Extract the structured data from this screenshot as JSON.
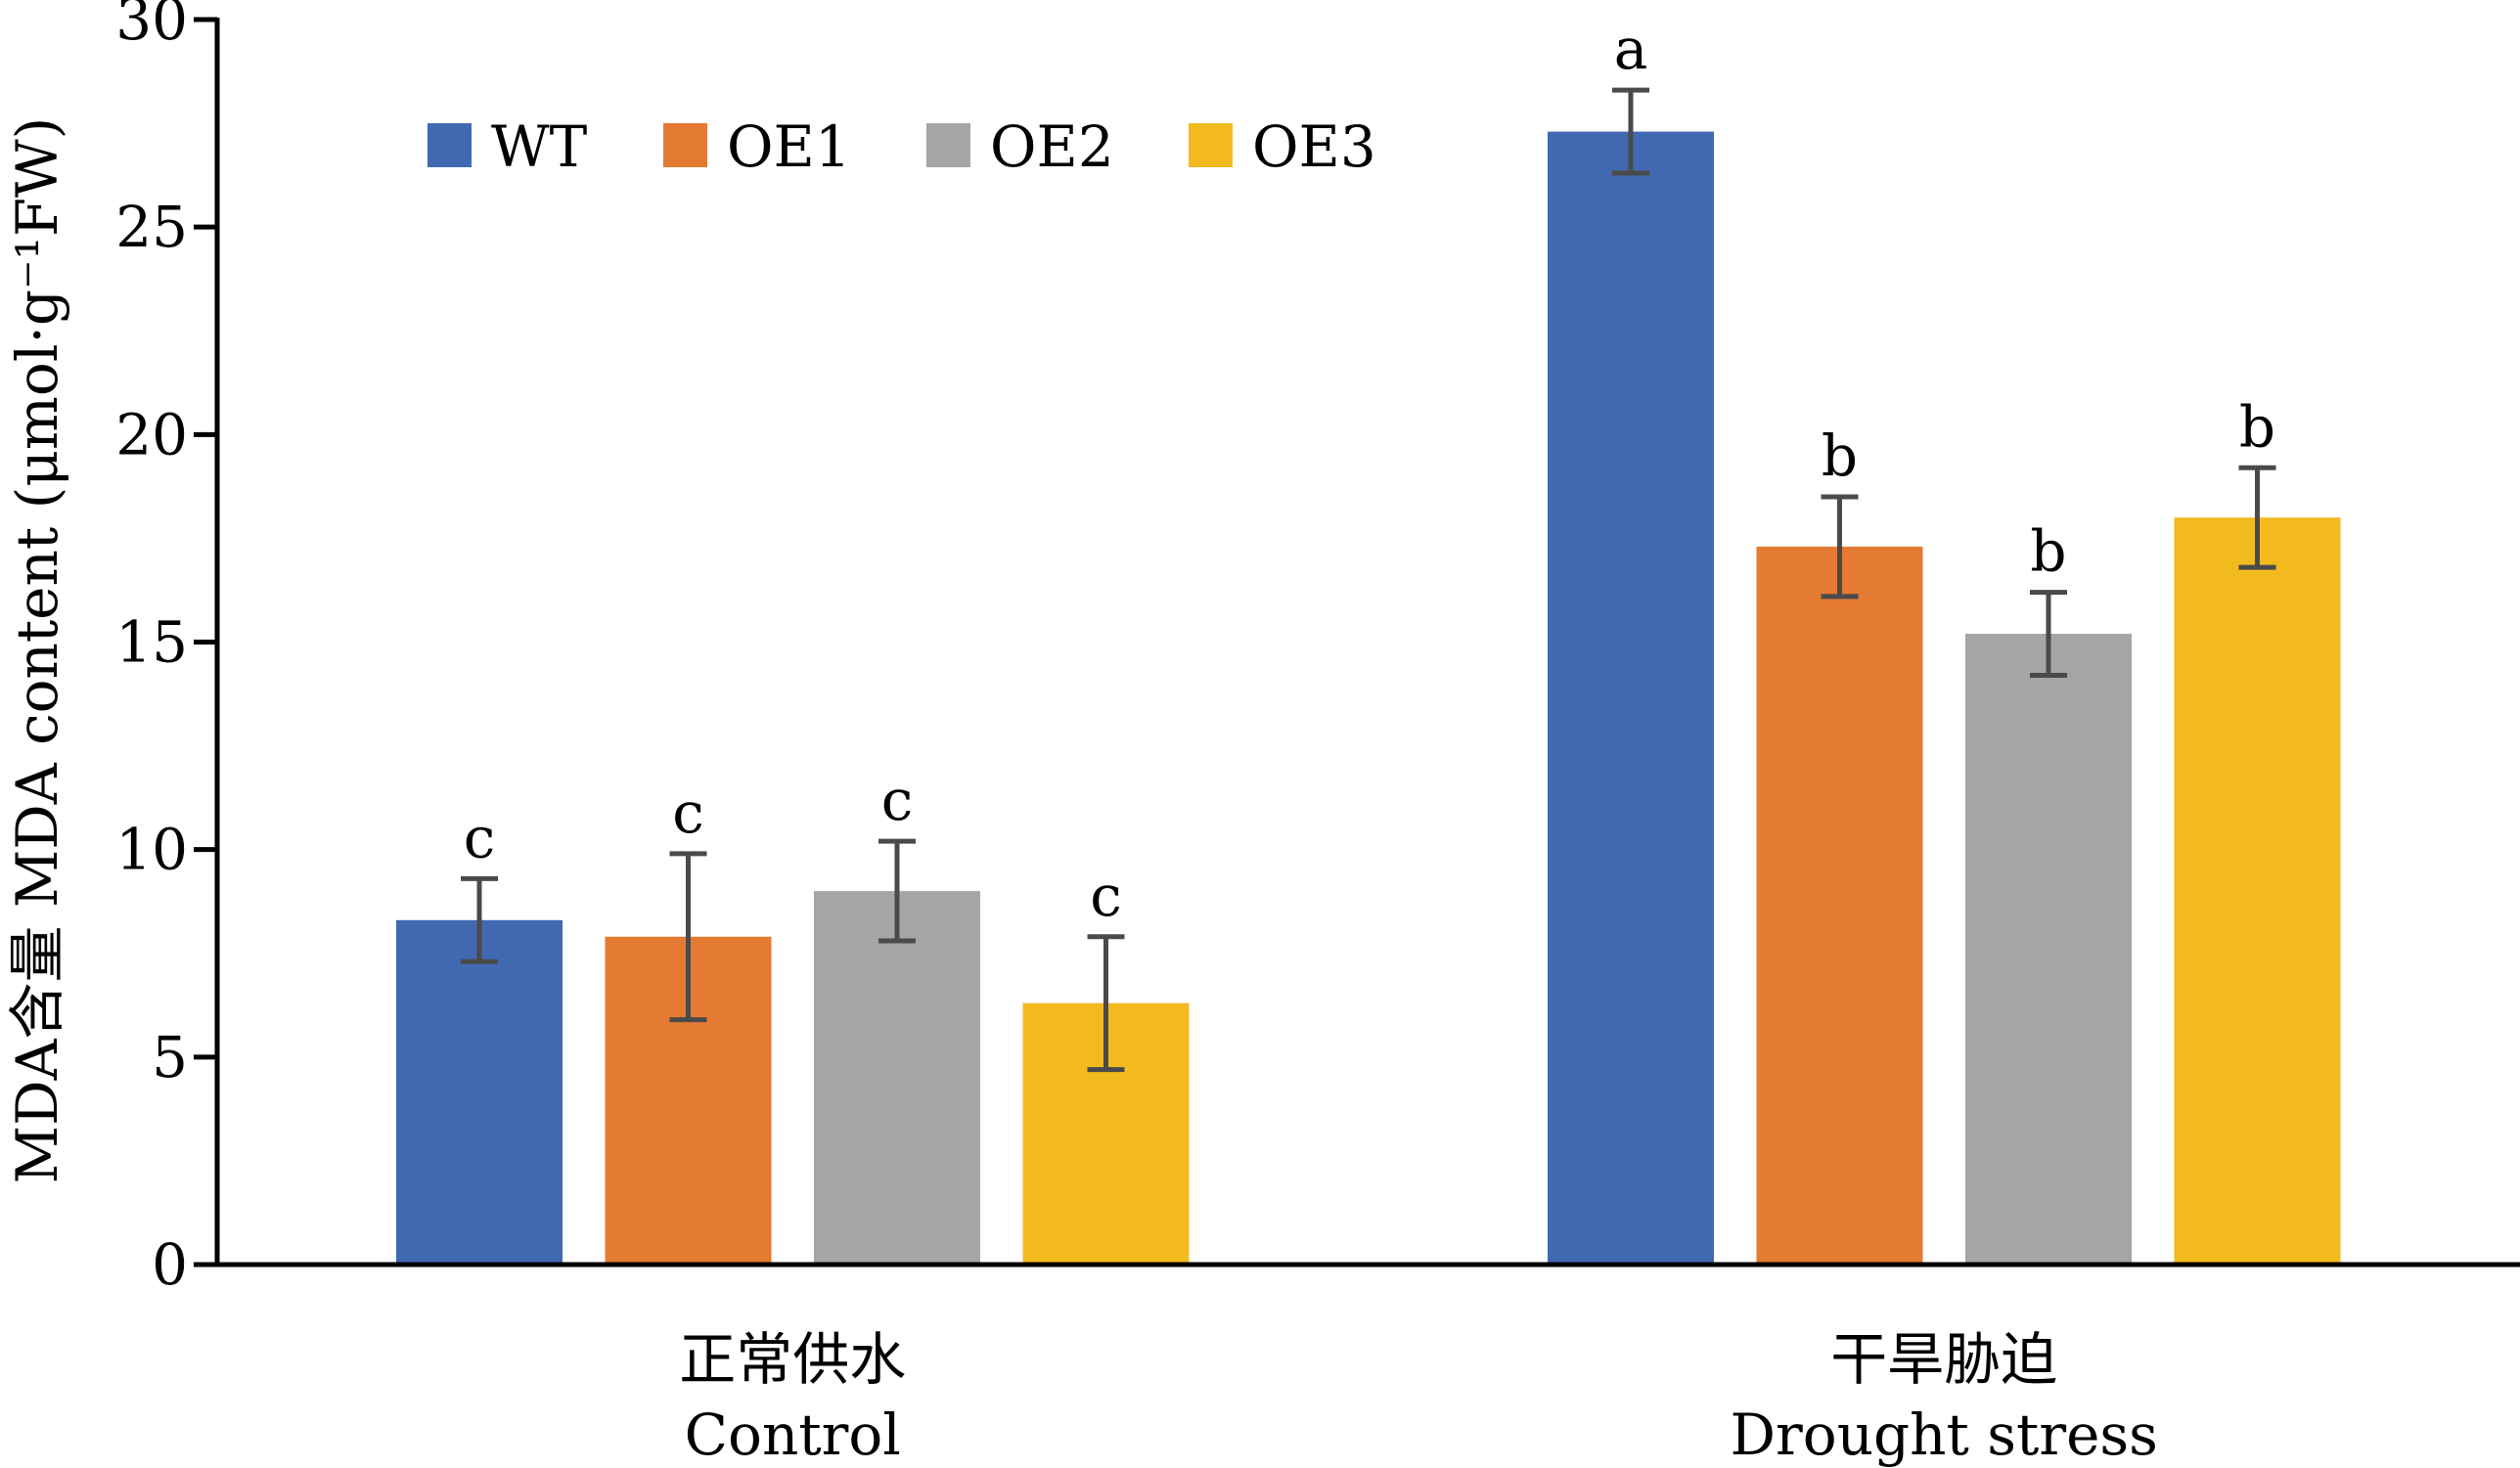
{
  "chart_data": {
    "type": "bar",
    "ylabel": "MDA含量 MDA content (μmol·g⁻¹FW)",
    "ylim": [
      0,
      30
    ],
    "yticks": [
      0,
      5,
      10,
      15,
      20,
      25,
      30
    ],
    "categories": [
      {
        "label_cn": "正常供水",
        "label_en": "Control"
      },
      {
        "label_cn": "干旱胁迫",
        "label_en": "Drought stress"
      }
    ],
    "legend_position": "top-left",
    "series": [
      {
        "name": "WT",
        "color": "#4169B2",
        "values": [
          8.3,
          27.3
        ],
        "errors": [
          1.0,
          1.0
        ],
        "sig": [
          "c",
          "a"
        ]
      },
      {
        "name": "OE1",
        "color": "#E57A33",
        "values": [
          7.9,
          17.3
        ],
        "errors": [
          2.0,
          1.2
        ],
        "sig": [
          "c",
          "b"
        ]
      },
      {
        "name": "OE2",
        "color": "#A5A5A5",
        "values": [
          9.0,
          15.2
        ],
        "errors": [
          1.2,
          1.0
        ],
        "sig": [
          "c",
          "b"
        ]
      },
      {
        "name": "OE3",
        "color": "#F2BA1E",
        "values": [
          6.3,
          18.0
        ],
        "errors": [
          1.6,
          1.2
        ],
        "sig": [
          "c",
          "b"
        ]
      }
    ]
  }
}
